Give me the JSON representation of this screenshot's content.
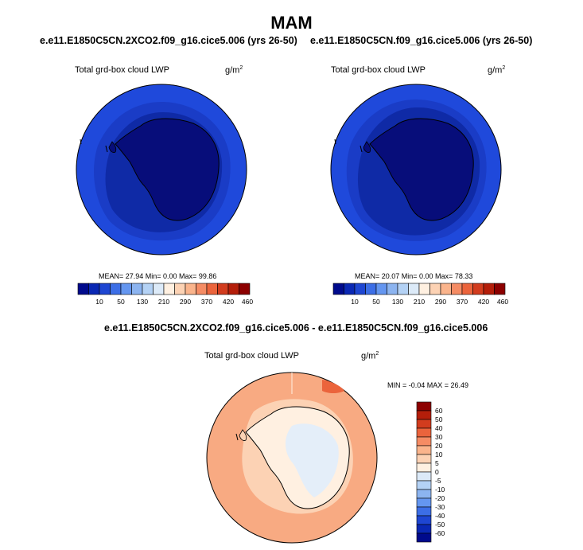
{
  "title": "MAM",
  "panels": [
    {
      "case": "e.e11.E1850C5CN.2XCO2.f09_g16.cice5.006 (yrs 26-50)",
      "variable": "Total grd-box cloud LWP",
      "units": "g/m",
      "units_exp": "2",
      "stats": "MEAN=  27.94  Min=   0.00  Max=  99.86"
    },
    {
      "case": "e.e11.E1850C5CN.f09_g16.cice5.006 (yrs 26-50)",
      "variable": "Total grd-box cloud LWP",
      "units": "g/m",
      "units_exp": "2",
      "stats": "MEAN=  20.07  Min=   0.00  Max=  78.33"
    }
  ],
  "diff": {
    "title": "e.e11.E1850C5CN.2XCO2.f09_g16.cice5.006 - e.e11.E1850C5CN.f09_g16.cice5.006",
    "variable": "Total grd-box cloud LWP",
    "units": "g/m",
    "units_exp": "2",
    "stats": "MIN =  -0.04 MAX =  26.49"
  },
  "colorbar": {
    "labels": [
      "10",
      "50",
      "130",
      "210",
      "290",
      "370",
      "420",
      "460"
    ],
    "colors": [
      "#000a8c",
      "#0a28b4",
      "#1e46d2",
      "#3c6ee6",
      "#6496f0",
      "#8cb4f0",
      "#b4d2f5",
      "#dceaf8",
      "#fff0e1",
      "#fcd2b4",
      "#fab48c",
      "#f58c64",
      "#eb643c",
      "#d23c1e",
      "#b41e0a",
      "#8c0000"
    ]
  },
  "diff_colorbar": {
    "labels": [
      "60",
      "50",
      "40",
      "30",
      "20",
      "10",
      "5",
      "0",
      "-5",
      "-10",
      "-20",
      "-30",
      "-40",
      "-50",
      "-60"
    ],
    "colors": [
      "#8c0000",
      "#b41e0a",
      "#d23c1e",
      "#eb643c",
      "#f58c64",
      "#fab48c",
      "#fcd2b4",
      "#fff0e1",
      "#dceaf8",
      "#b4d2f5",
      "#8cb4f0",
      "#6496f0",
      "#3c6ee6",
      "#1e46d2",
      "#0a28b4",
      "#000a8c"
    ]
  }
}
